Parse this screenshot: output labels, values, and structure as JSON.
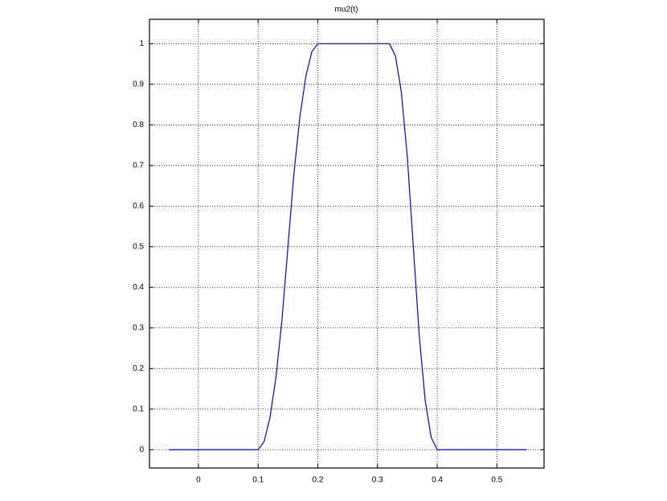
{
  "chart_data": {
    "type": "line",
    "title": "mu2(t)",
    "x": [
      -0.05,
      0,
      0.05,
      0.1,
      0.11,
      0.12,
      0.13,
      0.14,
      0.15,
      0.16,
      0.17,
      0.18,
      0.19,
      0.2,
      0.25,
      0.32,
      0.33,
      0.34,
      0.35,
      0.36,
      0.37,
      0.38,
      0.39,
      0.4,
      0.45,
      0.5,
      0.55
    ],
    "series": [
      {
        "color": "#0000e0",
        "values": [
          0,
          0,
          0,
          0,
          0.02,
          0.08,
          0.18,
          0.32,
          0.5,
          0.68,
          0.82,
          0.92,
          0.98,
          1,
          1,
          1,
          0.97,
          0.88,
          0.72,
          0.5,
          0.28,
          0.12,
          0.03,
          0,
          0,
          0,
          0
        ]
      }
    ],
    "xlim": [
      -0.082,
      0.579
    ],
    "xticks": [
      0,
      0.1,
      0.2,
      0.3,
      0.4,
      0.5
    ],
    "ylim": [
      -0.045,
      1.06
    ],
    "yticks": [
      0,
      0.1,
      0.2,
      0.3,
      0.4,
      0.5,
      0.6,
      0.7,
      0.8,
      0.9,
      1
    ],
    "grid": true
  }
}
